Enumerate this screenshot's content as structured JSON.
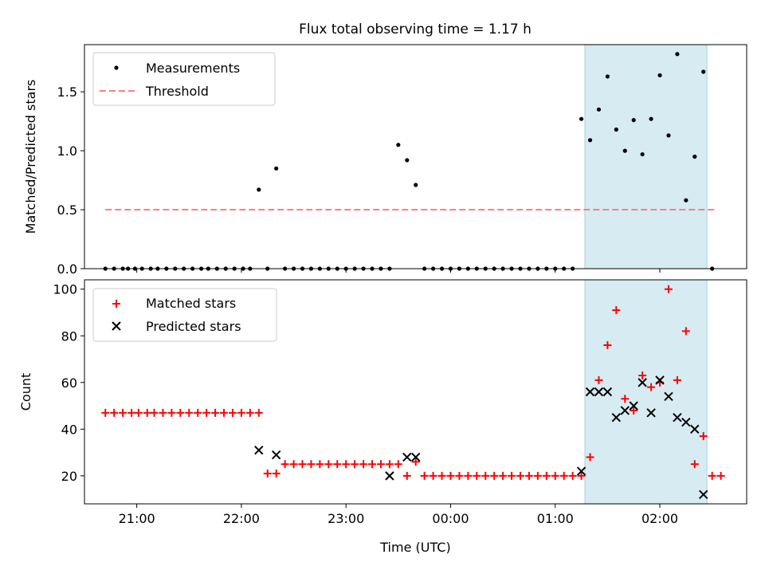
{
  "title": "Flux total observing time = 1.17 h",
  "x_tick_labels": [
    "21:00",
    "22:00",
    "23:00",
    "00:00",
    "01:00",
    "02:00"
  ],
  "colors": {
    "measurements": "#000000",
    "threshold": "#ff7f7f",
    "matched": "#ff0000",
    "predicted": "#000000",
    "highlight": "#add8e6"
  },
  "chart_data": [
    {
      "type": "scatter",
      "ylabel": "Matched/Predicted stars",
      "xlabel": "",
      "y_ticks": [
        "0.0",
        "0.5",
        "1.0",
        "1.5"
      ],
      "ylim": [
        0,
        1.9
      ],
      "xlim_hours_utc": [
        20.5,
        2.83
      ],
      "highlight_span_utc": [
        "01:17",
        "02:27"
      ],
      "legend": [
        "Measurements",
        "Threshold"
      ],
      "legend_position": "top-left",
      "threshold": {
        "name": "Threshold",
        "y": 0.5,
        "x_range_utc": [
          "20:42",
          "02:32"
        ]
      },
      "series": [
        {
          "name": "Measurements",
          "x_utc": [
            "20:42",
            "20:47",
            "20:52",
            "20:55",
            "20:59",
            "21:03",
            "21:08",
            "21:12",
            "21:17",
            "21:22",
            "21:27",
            "21:32",
            "21:37",
            "21:41",
            "21:46",
            "21:51",
            "21:56",
            "22:01",
            "22:05",
            "22:10",
            "22:15",
            "22:20",
            "22:25",
            "22:30",
            "22:35",
            "22:40",
            "22:45",
            "22:50",
            "22:55",
            "23:00",
            "23:05",
            "23:10",
            "23:15",
            "23:20",
            "23:25",
            "23:30",
            "23:35",
            "23:40",
            "23:45",
            "23:50",
            "23:55",
            "00:00",
            "00:05",
            "00:10",
            "00:15",
            "00:20",
            "00:25",
            "00:30",
            "00:35",
            "00:40",
            "00:45",
            "00:50",
            "00:55",
            "01:00",
            "01:05",
            "01:10",
            "01:15",
            "01:20",
            "01:25",
            "01:30",
            "01:35",
            "01:40",
            "01:45",
            "01:50",
            "01:55",
            "02:00",
            "02:05",
            "02:10",
            "02:15",
            "02:20",
            "02:25",
            "02:30"
          ],
          "y": [
            0,
            0,
            0,
            0,
            0,
            0,
            0,
            0,
            0,
            0,
            0,
            0,
            0,
            0,
            0,
            0,
            0,
            0,
            0,
            0.67,
            0,
            0.85,
            0,
            0,
            0,
            0,
            0,
            0,
            0,
            0,
            0,
            0,
            0,
            0,
            0,
            1.05,
            0.92,
            0.71,
            0,
            0,
            0,
            0,
            0,
            0,
            0,
            0,
            0,
            0,
            0,
            0,
            0,
            0,
            0,
            0,
            0,
            0,
            1.27,
            1.09,
            1.35,
            1.63,
            1.18,
            1.0,
            1.26,
            0.97,
            1.27,
            1.64,
            1.13,
            1.82,
            0.58,
            0.95,
            1.67,
            0
          ]
        }
      ]
    },
    {
      "type": "scatter",
      "ylabel": "Count",
      "xlabel": "Time (UTC)",
      "y_ticks": [
        "20",
        "40",
        "60",
        "80",
        "100"
      ],
      "ylim": [
        8,
        104
      ],
      "xlim_hours_utc": [
        20.5,
        2.83
      ],
      "highlight_span_utc": [
        "01:17",
        "02:27"
      ],
      "legend": [
        "Matched stars",
        "Predicted stars"
      ],
      "legend_position": "top-left",
      "series": [
        {
          "name": "Matched stars",
          "marker": "plus",
          "x_utc": [
            "20:42",
            "20:47",
            "20:52",
            "20:57",
            "21:01",
            "21:06",
            "21:10",
            "21:15",
            "21:20",
            "21:25",
            "21:30",
            "21:35",
            "21:40",
            "21:45",
            "21:50",
            "21:55",
            "22:00",
            "22:05",
            "22:10",
            "22:15",
            "22:20",
            "22:25",
            "22:30",
            "22:35",
            "22:40",
            "22:45",
            "22:50",
            "22:55",
            "23:00",
            "23:05",
            "23:10",
            "23:15",
            "23:20",
            "23:25",
            "23:30",
            "23:35",
            "23:40",
            "23:45",
            "23:50",
            "23:55",
            "00:00",
            "00:05",
            "00:10",
            "00:15",
            "00:20",
            "00:25",
            "00:30",
            "00:35",
            "00:40",
            "00:45",
            "00:50",
            "00:55",
            "01:00",
            "01:05",
            "01:10",
            "01:15",
            "01:20",
            "01:25",
            "01:30",
            "01:35",
            "01:40",
            "01:45",
            "01:50",
            "01:55",
            "02:00",
            "02:05",
            "02:10",
            "02:15",
            "02:20",
            "02:25",
            "02:30",
            "02:35"
          ],
          "y": [
            47,
            47,
            47,
            47,
            47,
            47,
            47,
            47,
            47,
            47,
            47,
            47,
            47,
            47,
            47,
            47,
            47,
            47,
            47,
            21,
            21,
            25,
            25,
            25,
            25,
            25,
            25,
            25,
            25,
            25,
            25,
            25,
            25,
            25,
            25,
            20,
            26,
            20,
            20,
            20,
            20,
            20,
            20,
            20,
            20,
            20,
            20,
            20,
            20,
            20,
            20,
            20,
            20,
            20,
            20,
            20,
            28,
            61,
            76,
            91,
            53,
            48,
            63,
            58,
            60,
            100,
            61,
            82,
            25,
            37,
            20,
            20
          ]
        },
        {
          "name": "Predicted stars",
          "marker": "x",
          "x_utc": [
            "22:10",
            "22:20",
            "23:25",
            "23:35",
            "23:40",
            "01:15",
            "01:20",
            "01:25",
            "01:30",
            "01:35",
            "01:40",
            "01:45",
            "01:50",
            "01:55",
            "02:00",
            "02:05",
            "02:10",
            "02:15",
            "02:20",
            "02:25"
          ],
          "y": [
            31,
            29,
            20,
            28,
            28,
            22,
            56,
            56,
            56,
            45,
            48,
            50,
            60,
            47,
            61,
            54,
            45,
            43,
            40,
            12
          ]
        }
      ]
    }
  ]
}
